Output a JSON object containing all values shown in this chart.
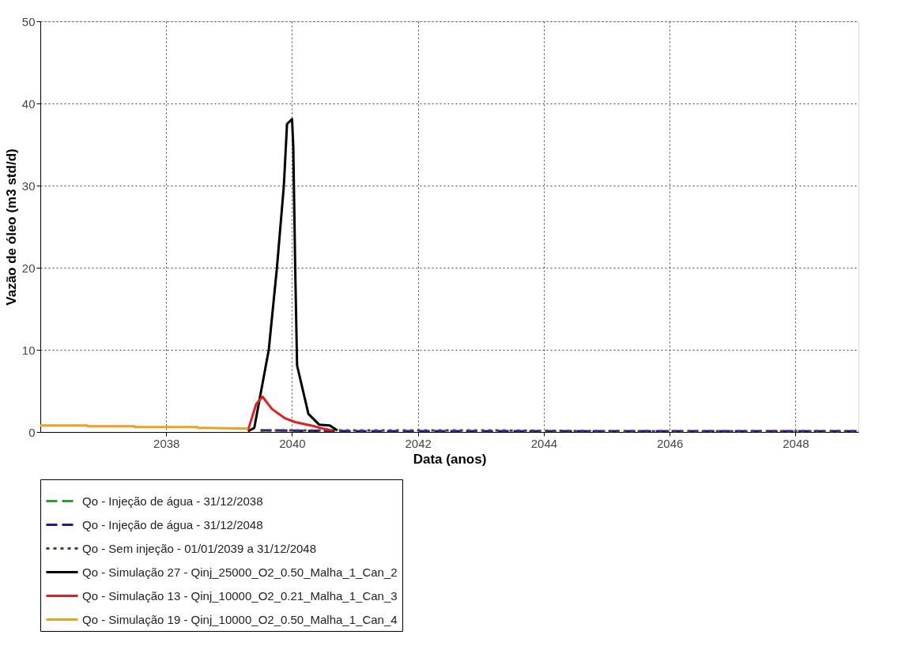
{
  "chart_data": {
    "type": "line",
    "xlabel": "Data (anos)",
    "ylabel": "Vazão de óleo  (m3 std/d)",
    "xlim": [
      2036,
      2049
    ],
    "ylim": [
      0,
      50
    ],
    "xticks": [
      2038,
      2040,
      2042,
      2044,
      2046,
      2048
    ],
    "yticks": [
      0,
      10,
      20,
      30,
      40,
      50
    ],
    "grid": true,
    "legend": "bottom",
    "series": [
      {
        "name": "Qo - Injeção de água - 31/12/2038",
        "color": "#2ca02c",
        "line_style": "dashed"
      },
      {
        "name": "Qo - Injeção de água - 31/12/2048",
        "color": "#1a1aa0",
        "line_style": "dashed",
        "x": [
          2039.5,
          2041,
          2043,
          2045,
          2047,
          2049
        ],
        "values": [
          0.2,
          0.1,
          0.1,
          0.1,
          0.1,
          0.1
        ]
      },
      {
        "name": "Qo - Sem injeção - 01/01/2039 a 31/12/2048",
        "color": "#5a3a2a",
        "line_style": "dotted",
        "x": [
          2039.5,
          2041,
          2043,
          2045,
          2047,
          2049
        ],
        "values": [
          0.2,
          0.2,
          0.2,
          0.1,
          0.1,
          0.1
        ]
      },
      {
        "name": "Qo - Simulação 27 - Qinj_25000_O2_0.50_Malha_1_Can_2",
        "color": "#000000",
        "line_style": "solid",
        "x": [
          2039.3,
          2039.4,
          2039.63,
          2039.76,
          2039.87,
          2039.92,
          2040.0,
          2040.02,
          2040.05,
          2040.08,
          2040.26,
          2040.43,
          2040.6,
          2040.72
        ],
        "values": [
          0.1,
          0.5,
          10,
          20,
          30,
          37.5,
          38.1,
          34.6,
          20,
          8.1,
          2.2,
          0.9,
          0.8,
          0.2
        ]
      },
      {
        "name": "Qo - Simulação 13 - Qinj_10000_O2_0.21_Malha_1_Can_3",
        "color": "#e02020",
        "line_style": "solid",
        "x": [
          2039.3,
          2039.43,
          2039.53,
          2039.68,
          2039.88,
          2040.05,
          2040.3,
          2040.5,
          2040.63
        ],
        "values": [
          0.2,
          3.4,
          4.3,
          2.8,
          1.7,
          1.2,
          0.8,
          0.4,
          0.2
        ]
      },
      {
        "name": "Qo - Simulação 19 - Qinj_10000_O2_0.50_Malha_1_Can_4",
        "color": "#f0a020",
        "line_style": "solid",
        "x": [
          2036,
          2036.75,
          2036.75,
          2037.5,
          2037.5,
          2038.5,
          2038.5,
          2039.3
        ],
        "values": [
          0.8,
          0.8,
          0.7,
          0.7,
          0.6,
          0.6,
          0.5,
          0.4
        ]
      }
    ]
  }
}
